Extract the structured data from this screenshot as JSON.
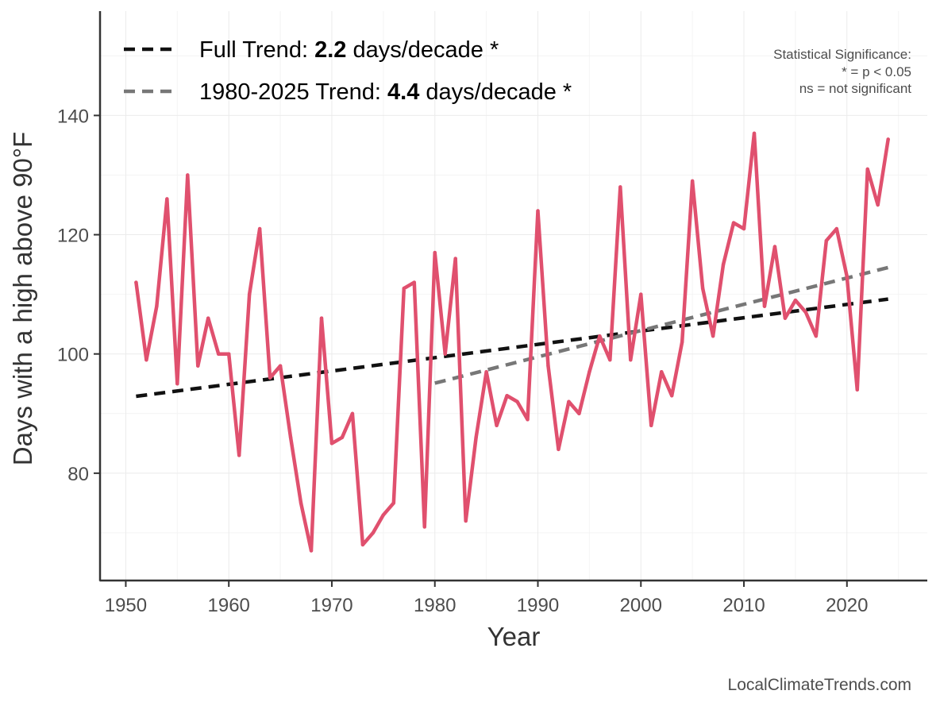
{
  "chart_data": {
    "type": "line",
    "title": "",
    "xlabel": "Year",
    "ylabel": "Days with a high above 90°F",
    "xlim": [
      1947.5,
      2027.8
    ],
    "ylim": [
      62.0,
      157.5
    ],
    "x_ticks": [
      1950,
      1960,
      1970,
      1980,
      1990,
      2000,
      2010,
      2020
    ],
    "y_ticks": [
      80,
      100,
      120,
      140
    ],
    "grid": true,
    "series": [
      {
        "name": "Days above 90°F",
        "color": "#e0506e",
        "x": [
          1951,
          1952,
          1953,
          1954,
          1955,
          1956,
          1957,
          1958,
          1959,
          1960,
          1961,
          1962,
          1963,
          1964,
          1965,
          1966,
          1967,
          1968,
          1969,
          1970,
          1971,
          1972,
          1973,
          1974,
          1975,
          1976,
          1977,
          1978,
          1979,
          1980,
          1981,
          1982,
          1983,
          1984,
          1985,
          1986,
          1987,
          1988,
          1989,
          1990,
          1991,
          1992,
          1993,
          1994,
          1995,
          1996,
          1997,
          1998,
          1999,
          2000,
          2001,
          2002,
          2003,
          2004,
          2005,
          2006,
          2007,
          2008,
          2009,
          2010,
          2011,
          2012,
          2013,
          2014,
          2015,
          2016,
          2017,
          2018,
          2019,
          2020,
          2021,
          2022,
          2023,
          2024
        ],
        "values": [
          112,
          99,
          108,
          126,
          95,
          130,
          98,
          106,
          100,
          100,
          83,
          110,
          121,
          96,
          98,
          86,
          75,
          67,
          106,
          85,
          86,
          90,
          68,
          70,
          73,
          75,
          111,
          112,
          71,
          117,
          100,
          116,
          72,
          86,
          97,
          88,
          93,
          92,
          89,
          124,
          98,
          84,
          92,
          90,
          97,
          103,
          99,
          128,
          99,
          110,
          88,
          97,
          93,
          102,
          129,
          111,
          103,
          115,
          122,
          121,
          137,
          108,
          118,
          106,
          109,
          107,
          103,
          119,
          121,
          113,
          94,
          131,
          125,
          136
        ]
      }
    ],
    "trends": [
      {
        "name": "Full Trend",
        "color": "#111111",
        "x": [
          1951,
          2024
        ],
        "values": [
          92.9,
          109.2
        ]
      },
      {
        "name": "1980-2025 Trend",
        "color": "#777777",
        "x": [
          1980,
          2024
        ],
        "values": [
          95.1,
          114.5
        ]
      }
    ],
    "legend": {
      "position": "top-left",
      "entries": [
        {
          "prefix": "Full Trend: ",
          "value": "2.2",
          "suffix": " days/decade *",
          "color": "#111111"
        },
        {
          "prefix": "1980-2025 Trend: ",
          "value": "4.4",
          "suffix": " days/decade *",
          "color": "#777777"
        }
      ]
    },
    "annotations": {
      "significance": [
        "Statistical Significance:",
        "* = p < 0.05",
        "ns = not significant"
      ],
      "credit": "LocalClimateTrends.com"
    }
  }
}
